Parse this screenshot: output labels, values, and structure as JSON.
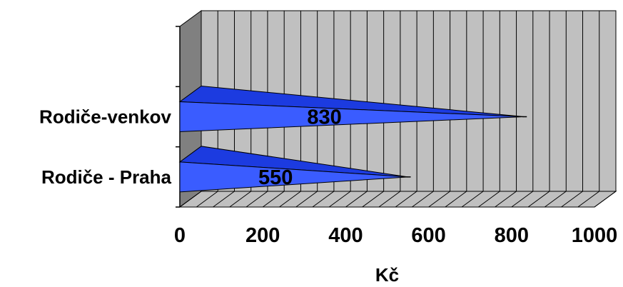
{
  "chart_data": {
    "type": "bar",
    "style": "3d-cone-horizontal",
    "categories": [
      "Rodiče - Praha",
      "Rodiče-venkov"
    ],
    "values": [
      550,
      830
    ],
    "data_labels": [
      "550",
      "830"
    ],
    "xlabel": "Kč",
    "ylabel": "",
    "title": "",
    "xlim": [
      0,
      1000
    ],
    "x_ticks": [
      "0",
      "200",
      "400",
      "600",
      "800",
      "1000"
    ],
    "grid": true,
    "legend": "none"
  },
  "colors": {
    "bar_front": "#3a5cff",
    "bar_top": "#1c3be0",
    "back_wall": "#c0c0c0",
    "side_wall": "#808080",
    "floor": "#c0c0c0",
    "grid": "#000000"
  }
}
